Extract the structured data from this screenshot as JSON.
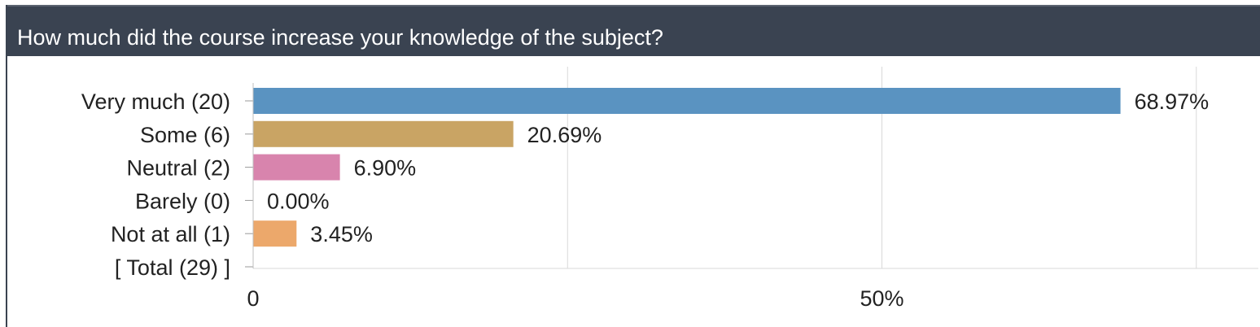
{
  "header": {
    "title": "How much did the course increase your knowledge of the subject?"
  },
  "colors": {
    "header_bg": "#3a4351",
    "header_text": "#ffffff",
    "grid": "#d9d9d9",
    "text": "#222222"
  },
  "chart_data": {
    "type": "bar",
    "orientation": "horizontal",
    "title": "How much did the course increase your knowledge of the subject?",
    "categories": [
      "Very much (20)",
      "Some (6)",
      "Neutral (2)",
      "Barely (0)",
      "Not at all (1)",
      "[ Total (29) ]"
    ],
    "values": [
      68.97,
      20.69,
      6.9,
      0.0,
      3.45,
      null
    ],
    "value_labels": [
      "68.97%",
      "20.69%",
      "6.90%",
      "0.00%",
      "3.45%",
      ""
    ],
    "bar_colors": [
      "#5a93c1",
      "#c9a464",
      "#d884ad",
      "#999999",
      "#eca86b",
      "#ffffff"
    ],
    "x_ticks": [
      0,
      50
    ],
    "x_tick_labels": [
      "0",
      "50%"
    ],
    "xlim": [
      0,
      75
    ],
    "grid": true,
    "xlabel": "",
    "ylabel": ""
  }
}
